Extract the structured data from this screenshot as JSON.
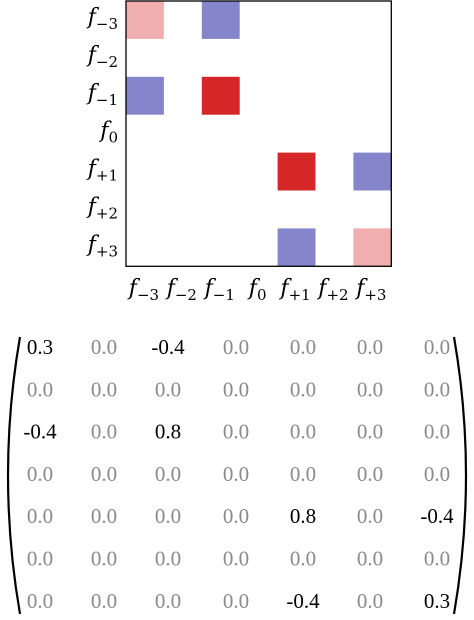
{
  "chart_data": [
    {
      "type": "heatmap",
      "x_labels": [
        "f_{-3}",
        "f_{-2}",
        "f_{-1}",
        "f_0",
        "f_{+1}",
        "f_{+2}",
        "f_{+3}"
      ],
      "y_labels": [
        "f_{-3}",
        "f_{-2}",
        "f_{-1}",
        "f_0",
        "f_{+1}",
        "f_{+2}",
        "f_{+3}"
      ],
      "values": [
        [
          0.3,
          0.0,
          -0.4,
          0.0,
          0.0,
          0.0,
          0.0
        ],
        [
          0.0,
          0.0,
          0.0,
          0.0,
          0.0,
          0.0,
          0.0
        ],
        [
          -0.4,
          0.0,
          0.8,
          0.0,
          0.0,
          0.0,
          0.0
        ],
        [
          0.0,
          0.0,
          0.0,
          0.0,
          0.0,
          0.0,
          0.0
        ],
        [
          0.0,
          0.0,
          0.0,
          0.0,
          0.8,
          0.0,
          -0.4
        ],
        [
          0.0,
          0.0,
          0.0,
          0.0,
          0.0,
          0.0,
          0.0
        ],
        [
          0.0,
          0.0,
          0.0,
          0.0,
          -0.4,
          0.0,
          0.3
        ]
      ],
      "color_scale": {
        "positive": "#d62728",
        "negative": "#3b3bab",
        "zero": "#ffffff",
        "vmax": 0.8
      },
      "grid": false
    },
    {
      "type": "table",
      "rows": [
        [
          "0.3",
          "0.0",
          "-0.4",
          "0.0",
          "0.0",
          "0.0",
          "0.0"
        ],
        [
          "0.0",
          "0.0",
          "0.0",
          "0.0",
          "0.0",
          "0.0",
          "0.0"
        ],
        [
          "-0.4",
          "0.0",
          "0.8",
          "0.0",
          "0.0",
          "0.0",
          "0.0"
        ],
        [
          "0.0",
          "0.0",
          "0.0",
          "0.0",
          "0.0",
          "0.0",
          "0.0"
        ],
        [
          "0.0",
          "0.0",
          "0.0",
          "0.0",
          "0.8",
          "0.0",
          "-0.4"
        ],
        [
          "0.0",
          "0.0",
          "0.0",
          "0.0",
          "0.0",
          "0.0",
          "0.0"
        ],
        [
          "0.0",
          "0.0",
          "0.0",
          "0.0",
          "-0.4",
          "0.0",
          "0.3"
        ]
      ],
      "nonzero_color": "#000000",
      "zero_color": "#8a8a8a"
    }
  ]
}
